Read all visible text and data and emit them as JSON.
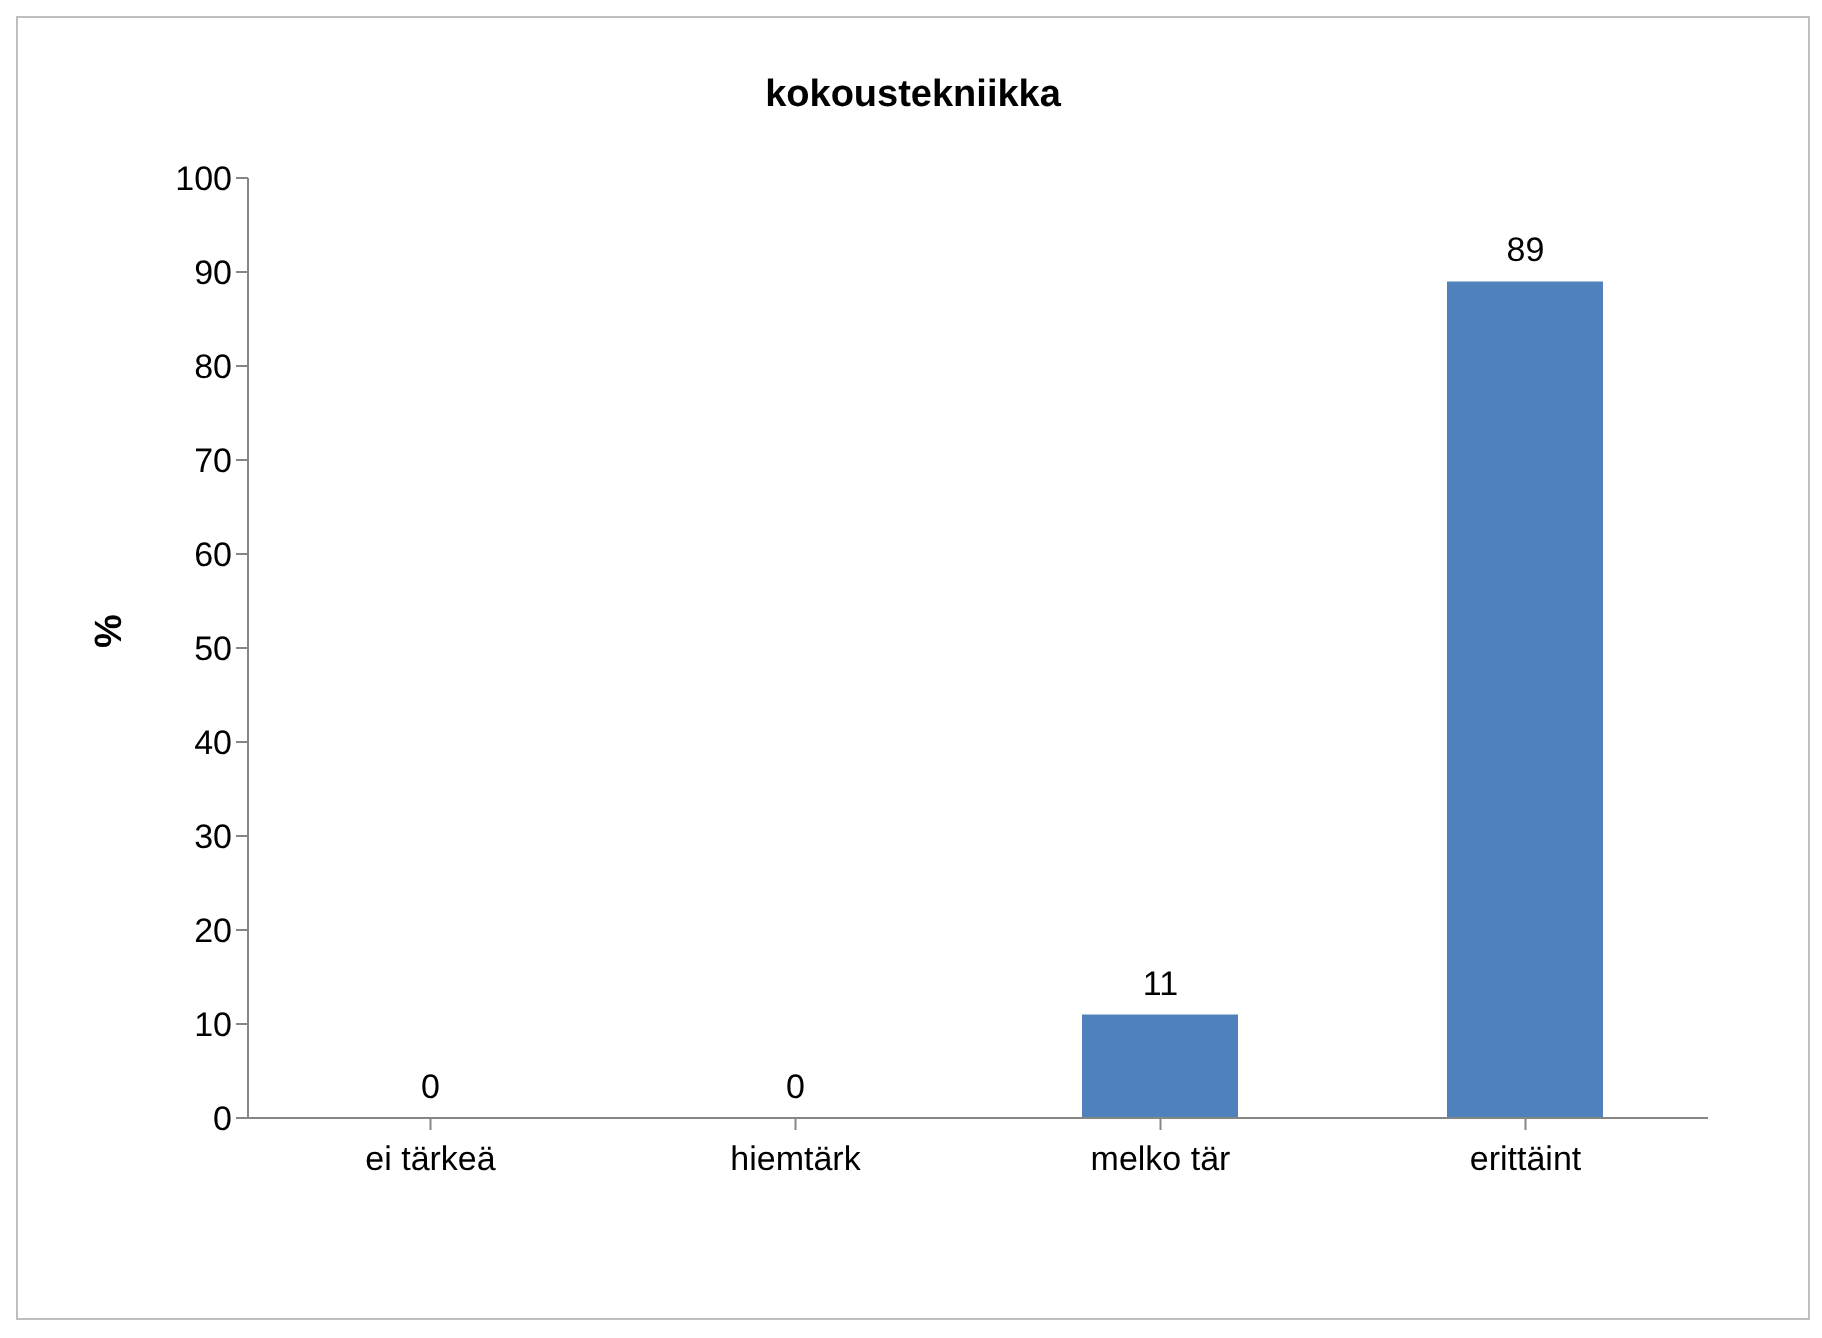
{
  "chart_data": {
    "type": "bar",
    "title": "kokoustekniikka",
    "ylabel": "%",
    "categories": [
      "ei tärkeä",
      "hiemtärk",
      "melko tär",
      "erittäint"
    ],
    "values": [
      0,
      0,
      11,
      89
    ],
    "color": "#4f81bd",
    "ylim": [
      0,
      100
    ],
    "yticks": [
      0,
      10,
      20,
      30,
      40,
      50,
      60,
      70,
      80,
      90,
      100
    ],
    "data_labels": true,
    "grid": false,
    "legend": false
  }
}
